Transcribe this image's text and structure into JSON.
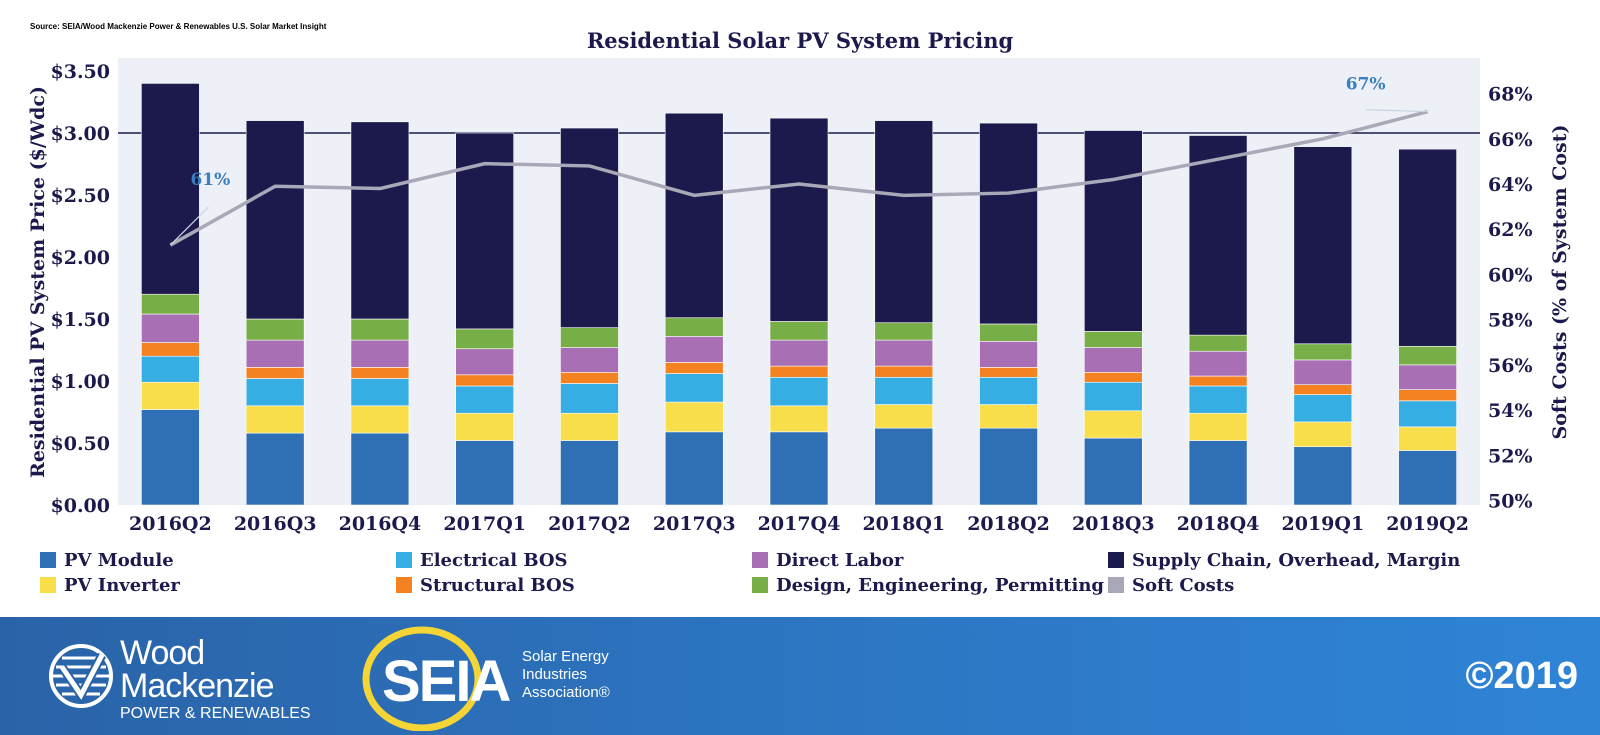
{
  "source": "Source: SEIA/Wood Mackenzie Power & Renewables U.S. Solar Market Insight",
  "chart_data": {
    "type": "bar",
    "stacked": true,
    "title": "Residential Solar PV System Pricing",
    "ylabel": "Residential PV System Price ($/Wdc)",
    "y2label": "Soft Costs (% of System Cost)",
    "ylim": [
      0,
      3.5
    ],
    "y2lim": [
      49.8,
      69
    ],
    "yticks": [
      "$0.00",
      "$0.50",
      "$1.00",
      "$1.50",
      "$2.00",
      "$2.50",
      "$3.00",
      "$3.50"
    ],
    "y2ticks": [
      "50%",
      "52%",
      "54%",
      "56%",
      "58%",
      "60%",
      "62%",
      "64%",
      "66%",
      "68%"
    ],
    "categories": [
      "2016Q2",
      "2016Q3",
      "2016Q4",
      "2017Q1",
      "2017Q2",
      "2017Q3",
      "2017Q4",
      "2018Q1",
      "2018Q2",
      "2018Q3",
      "2018Q4",
      "2019Q1",
      "2019Q2"
    ],
    "series": [
      {
        "name": "PV Module",
        "color": "#2e6fb5",
        "values": [
          0.77,
          0.58,
          0.58,
          0.52,
          0.52,
          0.59,
          0.59,
          0.62,
          0.62,
          0.54,
          0.52,
          0.47,
          0.44
        ]
      },
      {
        "name": "PV Inverter",
        "color": "#f9de4b",
        "values": [
          0.22,
          0.22,
          0.22,
          0.22,
          0.22,
          0.24,
          0.21,
          0.19,
          0.19,
          0.22,
          0.22,
          0.2,
          0.19
        ]
      },
      {
        "name": "Electrical BOS",
        "color": "#36ade3",
        "values": [
          0.21,
          0.22,
          0.22,
          0.22,
          0.24,
          0.23,
          0.23,
          0.22,
          0.22,
          0.23,
          0.22,
          0.22,
          0.21
        ]
      },
      {
        "name": "Structural BOS",
        "color": "#f58220",
        "values": [
          0.11,
          0.09,
          0.09,
          0.09,
          0.09,
          0.09,
          0.09,
          0.09,
          0.08,
          0.08,
          0.08,
          0.08,
          0.09
        ]
      },
      {
        "name": "Direct Labor",
        "color": "#a96fb4",
        "values": [
          0.23,
          0.22,
          0.22,
          0.21,
          0.2,
          0.21,
          0.21,
          0.21,
          0.21,
          0.2,
          0.2,
          0.2,
          0.2
        ]
      },
      {
        "name": "Design, Engineering, Permitting",
        "color": "#77ae48",
        "values": [
          0.16,
          0.17,
          0.17,
          0.16,
          0.16,
          0.15,
          0.15,
          0.14,
          0.14,
          0.13,
          0.13,
          0.13,
          0.15
        ]
      },
      {
        "name": "Supply Chain, Overhead, Margin",
        "color": "#1c1a4c",
        "values": [
          1.7,
          1.6,
          1.59,
          1.58,
          1.61,
          1.65,
          1.64,
          1.63,
          1.62,
          1.62,
          1.61,
          1.59,
          1.59
        ]
      }
    ],
    "line_series": {
      "name": "Soft Costs",
      "color": "#a8a8b8",
      "axis": "right",
      "values": [
        61.3,
        63.9,
        63.8,
        64.9,
        64.8,
        63.5,
        64.0,
        63.5,
        63.6,
        64.2,
        65.1,
        66.0,
        67.2
      ]
    },
    "annotations": [
      "61%",
      "67%"
    ],
    "legend_position": "bottom"
  },
  "footer": {
    "wm_line1": "Wood",
    "wm_line2": "Mackenzie",
    "wm_sub": "POWER & RENEWABLES",
    "seia_mark": "SEIA",
    "seia_line1": "Solar Energy",
    "seia_line2": "Industries",
    "seia_line3": "Association®",
    "copyright": "©2019"
  }
}
